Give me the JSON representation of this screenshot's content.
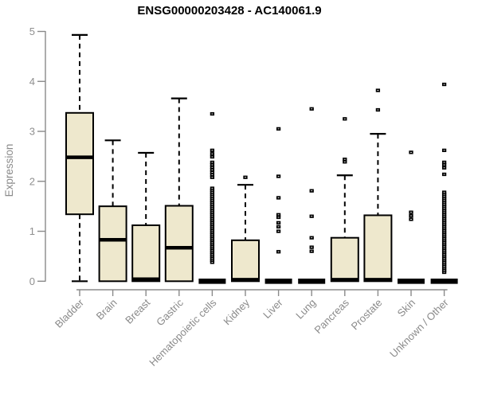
{
  "title": "ENSG00000203428 - AC140061.9",
  "chart_data": {
    "type": "boxplot",
    "title": "ENSG00000203428 - AC140061.9",
    "xlabel": "",
    "ylabel": "Expression",
    "ylim": [
      0,
      5
    ],
    "yticks": [
      0,
      1,
      2,
      3,
      4,
      5
    ],
    "grid": false,
    "legend": "none",
    "categories": [
      "Bladder",
      "Brain",
      "Breast",
      "Gastric",
      "Hematopoietic cells",
      "Kidney",
      "Liver",
      "Lung",
      "Pancreas",
      "Prostate",
      "Skin",
      "Unknown / Other"
    ],
    "series": [
      {
        "category": "Bladder",
        "whisker_low": 0,
        "q1": 1.34,
        "median": 2.48,
        "q3": 3.37,
        "whisker_high": 4.93,
        "outliers": []
      },
      {
        "category": "Brain",
        "whisker_low": 0,
        "q1": 0,
        "median": 0.83,
        "q3": 1.5,
        "whisker_high": 2.82,
        "outliers": []
      },
      {
        "category": "Breast",
        "whisker_low": 0,
        "q1": 0,
        "median": 0.04,
        "q3": 1.12,
        "whisker_high": 2.57,
        "outliers": []
      },
      {
        "category": "Gastric",
        "whisker_low": 0,
        "q1": 0,
        "median": 0.67,
        "q3": 1.51,
        "whisker_high": 3.66,
        "outliers": []
      },
      {
        "category": "Hematopoietic cells",
        "whisker_low": 0,
        "q1": 0,
        "median": 0,
        "q3": 0,
        "whisker_high": 0,
        "outliers": [
          3.35,
          2.62,
          2.55,
          2.49,
          2.38,
          2.33,
          2.28,
          2.23,
          2.18,
          2.13,
          2.08,
          1.86,
          1.82,
          1.78,
          1.74,
          1.7,
          1.66,
          1.62,
          1.58,
          1.54,
          1.5,
          1.46,
          1.42,
          1.38,
          1.34,
          1.3,
          1.26,
          1.22,
          1.18,
          1.14,
          1.1,
          1.06,
          1.02,
          0.98,
          0.94,
          0.9,
          0.86,
          0.82,
          0.78,
          0.74,
          0.7,
          0.66,
          0.62,
          0.58,
          0.54,
          0.5,
          0.46,
          0.42,
          0.38
        ]
      },
      {
        "category": "Kidney",
        "whisker_low": 0,
        "q1": 0,
        "median": 0.03,
        "q3": 0.82,
        "whisker_high": 1.93,
        "outliers": [
          2.08
        ]
      },
      {
        "category": "Liver",
        "whisker_low": 0,
        "q1": 0,
        "median": 0,
        "q3": 0,
        "whisker_high": 0,
        "outliers": [
          3.05,
          2.1,
          1.67,
          1.33,
          1.28,
          1.17,
          1.09,
          1.0,
          0.59
        ]
      },
      {
        "category": "Lung",
        "whisker_low": 0,
        "q1": 0,
        "median": 0,
        "q3": 0,
        "whisker_high": 0,
        "outliers": [
          3.45,
          1.81,
          1.3,
          0.87,
          0.68,
          0.6
        ]
      },
      {
        "category": "Pancreas",
        "whisker_low": 0,
        "q1": 0,
        "median": 0.03,
        "q3": 0.87,
        "whisker_high": 2.12,
        "outliers": [
          3.25,
          2.44,
          2.39
        ]
      },
      {
        "category": "Prostate",
        "whisker_low": 0,
        "q1": 0,
        "median": 0.03,
        "q3": 1.32,
        "whisker_high": 2.95,
        "outliers": [
          3.82,
          3.43
        ]
      },
      {
        "category": "Skin",
        "whisker_low": 0,
        "q1": 0,
        "median": 0,
        "q3": 0,
        "whisker_high": 0,
        "outliers": [
          2.58,
          1.38,
          1.31,
          1.24
        ]
      },
      {
        "category": "Unknown / Other",
        "whisker_low": 0,
        "q1": 0,
        "median": 0,
        "q3": 0,
        "whisker_high": 0,
        "outliers": [
          3.94,
          2.62,
          2.38,
          2.33,
          2.27,
          2.14,
          1.78,
          1.74,
          1.7,
          1.66,
          1.62,
          1.58,
          1.54,
          1.5,
          1.46,
          1.42,
          1.38,
          1.34,
          1.3,
          1.26,
          1.22,
          1.18,
          1.14,
          1.1,
          1.06,
          1.02,
          0.98,
          0.94,
          0.9,
          0.86,
          0.82,
          0.78,
          0.74,
          0.7,
          0.66,
          0.62,
          0.58,
          0.54,
          0.5,
          0.46,
          0.42,
          0.38,
          0.34,
          0.3,
          0.26,
          0.22,
          0.18
        ]
      }
    ],
    "colors": {
      "box_fill": "#EEE8CD",
      "box_stroke": "#000000",
      "median": "#000000",
      "whisker": "#000000",
      "outlier_stroke": "#000000",
      "outlier_fill": "#ffffff",
      "axis": "#8a8a8a",
      "tick_label": "#8f8f8f",
      "title": "#000000",
      "background": "#ffffff"
    }
  }
}
